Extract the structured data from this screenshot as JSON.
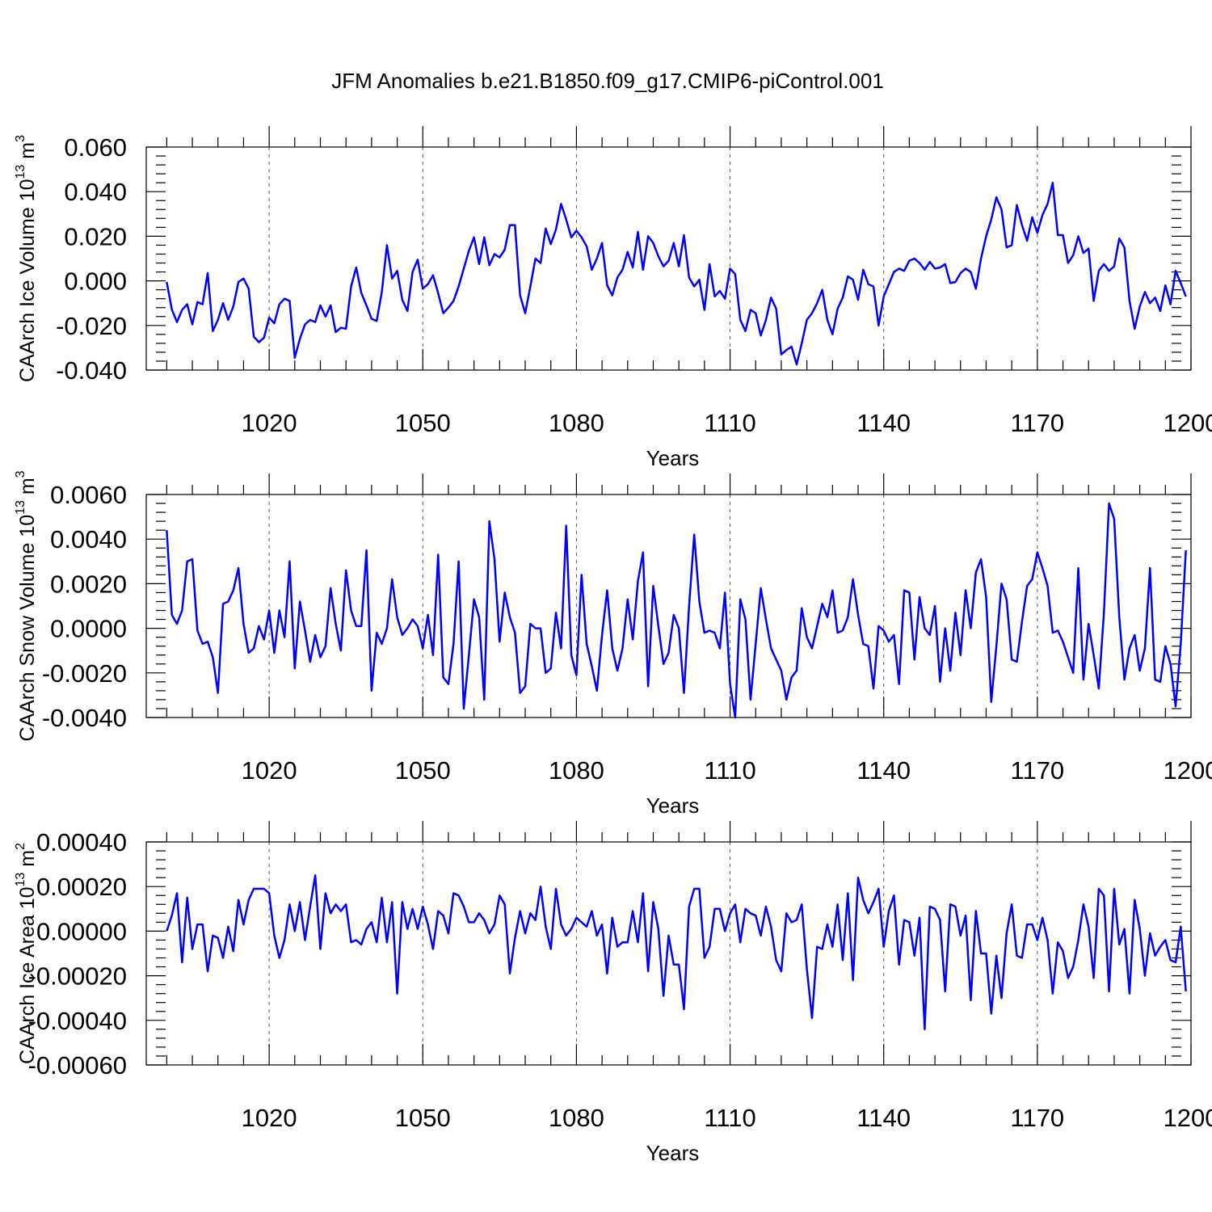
{
  "title": "JFM Anomalies b.e21.B1850.f09_g17.CMIP6-piControl.001",
  "line_color": "#0000ff",
  "chart_data": [
    {
      "type": "line",
      "title": "JFM Anomalies b.e21.B1850.f09_g17.CMIP6-piControl.001",
      "xlabel": "Years",
      "ylabel": "CAArch Ice Volume 10",
      "ylabel_sup": "13",
      "ylabel_unit": "m",
      "ylabel_unit_sup": "3",
      "xlim": [
        996,
        1200
      ],
      "ylim": [
        -0.04,
        0.06
      ],
      "x_ticks": [
        1020,
        1050,
        1080,
        1110,
        1140,
        1170,
        1200
      ],
      "x_tick_labels": [
        "1020",
        "1050",
        "1080",
        "1110",
        "1140",
        "1170",
        "1200"
      ],
      "y_ticks": [
        -0.04,
        -0.02,
        0.0,
        0.02,
        0.04,
        0.06
      ],
      "y_tick_labels": [
        "-0.040",
        "-0.020",
        "0.000",
        "0.020",
        "0.040",
        "0.060"
      ],
      "grid": "dashed vertical at major x ticks",
      "x_start": 1000,
      "values": [
        -0.0005,
        -0.0128,
        -0.0185,
        -0.013,
        -0.0105,
        -0.0195,
        -0.0095,
        -0.0105,
        0.0035,
        -0.0225,
        -0.0175,
        -0.01,
        -0.0175,
        -0.0115,
        -0.0005,
        0.001,
        -0.0035,
        -0.025,
        -0.0275,
        -0.0255,
        -0.0165,
        -0.019,
        -0.0105,
        -0.008,
        -0.009,
        -0.0345,
        -0.026,
        -0.0195,
        -0.0175,
        -0.0185,
        -0.011,
        -0.016,
        -0.011,
        -0.023,
        -0.021,
        -0.0215,
        -0.0025,
        0.006,
        -0.0055,
        -0.011,
        -0.017,
        -0.018,
        -0.005,
        0.016,
        0.001,
        0.0045,
        -0.0085,
        -0.0135,
        0.004,
        0.0095,
        -0.0035,
        -0.0015,
        0.0025,
        -0.0055,
        -0.0145,
        -0.012,
        -0.009,
        -0.0025,
        0.0055,
        0.0135,
        0.0195,
        0.0075,
        0.0195,
        0.007,
        0.012,
        0.0105,
        0.014,
        0.025,
        0.025,
        -0.0065,
        -0.0145,
        -0.0025,
        0.01,
        0.008,
        0.0235,
        0.0165,
        0.023,
        0.0345,
        0.0275,
        0.0195,
        0.0225,
        0.0195,
        0.0155,
        0.005,
        0.01,
        0.017,
        -0.002,
        -0.0065,
        0.0015,
        0.005,
        0.013,
        0.006,
        0.022,
        0.005,
        0.02,
        0.017,
        0.011,
        0.0065,
        0.009,
        0.017,
        0.0065,
        0.0205,
        0.0015,
        -0.0025,
        0.0005,
        -0.013,
        0.0075,
        -0.007,
        -0.0045,
        -0.008,
        0.0055,
        0.003,
        -0.0175,
        -0.0225,
        -0.013,
        -0.0145,
        -0.0245,
        -0.0175,
        -0.0075,
        -0.0125,
        -0.033,
        -0.031,
        -0.0295,
        -0.0375,
        -0.028,
        -0.0175,
        -0.0145,
        -0.01,
        -0.004,
        -0.0175,
        -0.024,
        -0.0125,
        -0.0075,
        0.002,
        0.0005,
        -0.0085,
        0.005,
        -0.0015,
        -0.0025,
        -0.02,
        -0.007,
        -0.0015,
        0.004,
        0.0055,
        0.0045,
        0.009,
        0.01,
        0.008,
        0.005,
        0.0085,
        0.0055,
        0.006,
        0.0075,
        -0.001,
        -0.0005,
        0.0035,
        0.0055,
        0.004,
        -0.0035,
        0.01,
        0.02,
        0.0275,
        0.0375,
        0.032,
        0.015,
        0.016,
        0.034,
        0.025,
        0.018,
        0.0285,
        0.0215,
        0.0295,
        0.0345,
        0.044,
        0.0205,
        0.0205,
        0.008,
        0.0115,
        0.02,
        0.0125,
        0.0145,
        -0.009,
        0.0045,
        0.0075,
        0.0045,
        0.0065,
        0.019,
        0.015,
        -0.009,
        -0.0215,
        -0.0115,
        -0.005,
        -0.01,
        -0.0075,
        -0.0135,
        -0.002,
        -0.0105,
        0.0045,
        -0.001,
        -0.007
      ]
    },
    {
      "type": "line",
      "xlabel": "Years",
      "ylabel": "CAArch Snow Volume 10",
      "ylabel_sup": "13",
      "ylabel_unit": "m",
      "ylabel_unit_sup": "3",
      "xlim": [
        996,
        1200
      ],
      "ylim": [
        -0.004,
        0.006
      ],
      "x_ticks": [
        1020,
        1050,
        1080,
        1110,
        1140,
        1170,
        1200
      ],
      "x_tick_labels": [
        "1020",
        "1050",
        "1080",
        "1110",
        "1140",
        "1170",
        "1200"
      ],
      "y_ticks": [
        -0.004,
        -0.002,
        0.0,
        0.002,
        0.004,
        0.006
      ],
      "y_tick_labels": [
        "-0.0040",
        "-0.0020",
        "0.0000",
        "0.0020",
        "0.0040",
        "0.0060"
      ],
      "grid": "dashed vertical at major x ticks",
      "x_start": 1000,
      "values": [
        0.0044,
        0.0006,
        0.0002,
        0.0008,
        0.003,
        0.0031,
        -0.0001,
        -0.0007,
        -0.0006,
        -0.0013,
        -0.0029,
        0.0011,
        0.0012,
        0.0017,
        0.0027,
        0.0002,
        -0.0011,
        -0.0009,
        0.0001,
        -0.0005,
        0.0008,
        -0.0011,
        0.0008,
        -0.0004,
        0.003,
        -0.0018,
        0.0012,
        -0.0001,
        -0.0015,
        -0.0003,
        -0.0013,
        -0.0008,
        0.0018,
        0.0002,
        -0.001,
        0.0026,
        0.0008,
        0.0001,
        0.0001,
        0.0035,
        -0.0028,
        -0.0002,
        -0.0007,
        0.0,
        0.0022,
        0.0005,
        -0.0003,
        0.0,
        0.0004,
        0.0001,
        -0.0009,
        0.0006,
        -0.0012,
        0.0033,
        -0.0022,
        -0.0025,
        -0.0007,
        0.003,
        -0.0036,
        -0.0012,
        0.0013,
        0.0005,
        -0.0032,
        0.0048,
        0.0031,
        -0.0006,
        0.0016,
        0.0005,
        -0.0002,
        -0.0029,
        -0.0026,
        0.0002,
        0.0,
        0.0,
        -0.002,
        -0.0018,
        0.0007,
        -0.0009,
        0.0046,
        -0.0012,
        -0.0021,
        0.0024,
        -0.0007,
        -0.0017,
        -0.0028,
        -0.0003,
        0.0017,
        -0.0009,
        -0.0019,
        -0.0009,
        0.0013,
        -0.0005,
        0.0021,
        0.0034,
        -0.0026,
        0.0019,
        0.0001,
        -0.0016,
        -0.0011,
        0.0006,
        0.0,
        -0.0029,
        0.001,
        0.0042,
        0.0012,
        -0.0002,
        -0.0001,
        -0.0002,
        -0.0009,
        0.0016,
        -0.0025,
        -0.004,
        0.0013,
        0.0004,
        -0.0032,
        -0.0007,
        0.0018,
        0.0004,
        -0.0009,
        -0.0014,
        -0.0019,
        -0.0032,
        -0.0022,
        -0.0019,
        0.0009,
        -0.0004,
        -0.0009,
        0.0001,
        0.0011,
        0.0005,
        0.0017,
        -0.0002,
        -0.0001,
        0.0005,
        0.0022,
        0.0006,
        -0.0007,
        -0.0008,
        -0.0027,
        0.0001,
        -0.0001,
        -0.0006,
        -0.0003,
        -0.0025,
        0.0017,
        0.0016,
        -0.0014,
        0.0014,
        0.0,
        -0.0003,
        0.001,
        -0.0024,
        0.0,
        -0.0019,
        0.0007,
        -0.0012,
        0.0017,
        0.0,
        0.0025,
        0.0031,
        0.0014,
        -0.0033,
        -0.0008,
        0.002,
        0.0013,
        -0.0014,
        -0.0015,
        0.0003,
        0.0019,
        0.0022,
        0.0034,
        0.0027,
        0.0019,
        -0.0002,
        -0.0001,
        -0.0006,
        -0.0013,
        -0.002,
        0.0027,
        -0.0023,
        0.0002,
        -0.0012,
        -0.0027,
        0.0007,
        0.0056,
        0.0049,
        0.0005,
        -0.0023,
        -0.0009,
        -0.0003,
        -0.0019,
        -0.0009,
        0.0027,
        -0.0023,
        -0.0024,
        -0.0008,
        -0.0016,
        -0.0035,
        -0.0007,
        0.0035
      ]
    },
    {
      "type": "line",
      "xlabel": "Years",
      "ylabel": "CAArch Ice Area 10",
      "ylabel_sup": "13",
      "ylabel_unit": "m",
      "ylabel_unit_sup": "2",
      "xlim": [
        996,
        1200
      ],
      "ylim": [
        -0.0006,
        0.0004
      ],
      "x_ticks": [
        1020,
        1050,
        1080,
        1110,
        1140,
        1170,
        1200
      ],
      "x_tick_labels": [
        "1020",
        "1050",
        "1080",
        "1110",
        "1140",
        "1170",
        "1200"
      ],
      "y_ticks": [
        -0.0006,
        -0.0004,
        -0.0002,
        0.0,
        0.0002,
        0.0004
      ],
      "y_tick_labels": [
        "-0.00060",
        "-0.00040",
        "-0.00020",
        "0.00000",
        "0.00020",
        "0.00040"
      ],
      "grid": "dashed vertical at major x ticks",
      "x_start": 1000,
      "values": [
        0.0,
        7e-05,
        0.00017,
        -0.00014,
        0.00015,
        -8e-05,
        3e-05,
        3e-05,
        -0.00018,
        -2e-05,
        -3e-05,
        -0.00012,
        2e-05,
        -9e-05,
        0.00014,
        3e-05,
        0.00014,
        0.00019,
        0.00019,
        0.00019,
        0.00017,
        -2e-05,
        -0.00012,
        -4e-05,
        0.00012,
        0.0,
        0.00013,
        -4e-05,
        0.00011,
        0.00025,
        -8e-05,
        0.00017,
        8e-05,
        0.00012,
        9e-05,
        0.00012,
        -5e-05,
        -4e-05,
        -6e-05,
        1e-05,
        4e-05,
        -5e-05,
        0.00015,
        -5e-05,
        0.00013,
        -0.00028,
        0.00013,
        1e-05,
        0.0001,
        1e-05,
        0.00011,
        3e-05,
        -8e-05,
        9e-05,
        7e-05,
        -1e-05,
        0.00017,
        0.00016,
        0.00011,
        4e-05,
        4e-05,
        8e-05,
        5e-05,
        -1e-05,
        3e-05,
        0.00016,
        0.00012,
        -0.00019,
        -3e-05,
        9e-05,
        -1e-05,
        8e-05,
        5e-05,
        0.0002,
        2e-05,
        -8e-05,
        0.00019,
        3e-05,
        -2e-05,
        1e-05,
        6e-05,
        4e-05,
        2e-05,
        9e-05,
        -2e-05,
        3e-05,
        -0.00019,
        6e-05,
        -7e-05,
        -5e-05,
        -5e-05,
        9e-05,
        -5e-05,
        0.00017,
        -0.00018,
        0.00013,
        1e-05,
        -0.00029,
        -2e-05,
        -0.00015,
        -0.00015,
        -0.00035,
        0.00011,
        0.00019,
        0.00019,
        -0.00012,
        -7e-05,
        0.0001,
        0.0001,
        0.0,
        8e-05,
        0.00012,
        -5e-05,
        0.0001,
        8e-05,
        7e-05,
        -2e-05,
        0.00011,
        2e-05,
        -0.00013,
        -0.00018,
        8e-05,
        4e-05,
        5e-05,
        0.00012,
        -0.00017,
        -0.00039,
        -7e-05,
        -8e-05,
        3e-05,
        -7e-05,
        0.00012,
        -0.00013,
        0.00017,
        -0.00022,
        0.00024,
        0.00014,
        8e-05,
        0.00013,
        0.00019,
        -7e-05,
        9e-05,
        0.00016,
        -0.00015,
        5e-05,
        4e-05,
        -0.00011,
        6e-05,
        -0.00044,
        0.00011,
        0.0001,
        5e-05,
        -0.00027,
        0.00012,
        0.00011,
        -2e-05,
        7e-05,
        -0.00031,
        9e-05,
        -0.0001,
        -0.0001,
        -0.00037,
        -0.00011,
        -0.0003,
        -1e-05,
        0.00012,
        -0.00011,
        -0.00012,
        3e-05,
        3e-05,
        -4e-05,
        6e-05,
        -4e-05,
        -0.00028,
        -5e-05,
        -9e-05,
        -0.00021,
        -0.00016,
        -4e-05,
        0.00012,
        2e-05,
        -0.00021,
        0.00019,
        0.00016,
        -0.00027,
        0.00019,
        -6e-05,
        1e-05,
        -0.00028,
        0.00014,
        1e-05,
        -0.0002,
        -1e-05,
        -0.00011,
        -7e-05,
        -4e-05,
        -0.00013,
        -0.00014,
        2e-05,
        -0.00027
      ]
    }
  ]
}
